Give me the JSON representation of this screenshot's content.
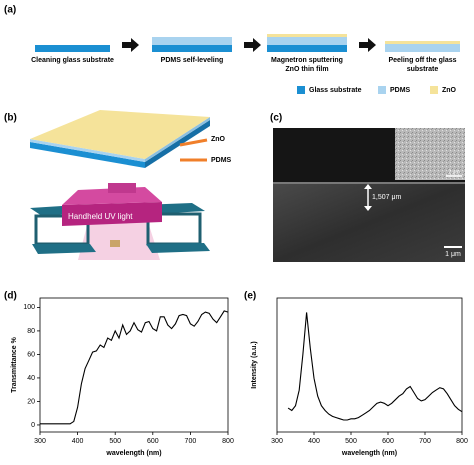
{
  "panel_labels": [
    "(a)",
    "(b)",
    "(c)",
    "(d)",
    "(e)"
  ],
  "process_steps": [
    {
      "lines": [
        "Cleaning glass substrate"
      ]
    },
    {
      "lines": [
        "PDMS self-leveling"
      ]
    },
    {
      "lines": [
        "Magnetron sputtering",
        "ZnO thin film"
      ]
    },
    {
      "lines": [
        "Peeling off the glass",
        "substrate"
      ]
    }
  ],
  "legend": [
    {
      "label": "Glass substrate",
      "color": "#1b8fd2"
    },
    {
      "label": "PDMS",
      "color": "#a9d3ef"
    },
    {
      "label": "ZnO",
      "color": "#f5e39a"
    }
  ],
  "illustration": {
    "labels": [
      "ZnO",
      "PDMS",
      "Handheld UV light"
    ]
  },
  "sem": {
    "scale_top": "2 μm",
    "thickness": "1,507 μm",
    "scale_bottom": "1 μm"
  },
  "chart_data": [
    {
      "type": "line",
      "xlabel": "wavelength (nm)",
      "ylabel": "Transmittance %",
      "color": "#000000",
      "x": [
        300,
        310,
        320,
        330,
        340,
        350,
        360,
        370,
        380,
        390,
        400,
        410,
        420,
        430,
        440,
        450,
        460,
        470,
        480,
        490,
        500,
        510,
        520,
        530,
        540,
        550,
        560,
        570,
        580,
        590,
        600,
        610,
        620,
        630,
        640,
        650,
        660,
        670,
        680,
        690,
        700,
        710,
        720,
        730,
        740,
        750,
        760,
        770,
        780,
        790,
        800
      ],
      "values": [
        1,
        1,
        1,
        1,
        1,
        1,
        1,
        1,
        1,
        3,
        15,
        35,
        48,
        55,
        62,
        63,
        68,
        66,
        74,
        72,
        80,
        74,
        85,
        77,
        80,
        87,
        81,
        79,
        87,
        88,
        82,
        80,
        92,
        92,
        85,
        82,
        86,
        93,
        94,
        93,
        86,
        84,
        88,
        94,
        96,
        95,
        90,
        87,
        92,
        97,
        96
      ],
      "xlim": [
        300,
        800
      ],
      "xticks": [
        300,
        400,
        500,
        600,
        700,
        800
      ],
      "ylim": [
        -6,
        108
      ],
      "yticks": [
        0,
        20,
        40,
        60,
        80,
        100
      ]
    },
    {
      "type": "line",
      "xlabel": "wavelength (nm)",
      "ylabel": "Intensity (a.u.)",
      "color": "#000000",
      "x": [
        330,
        340,
        350,
        360,
        370,
        380,
        390,
        400,
        410,
        420,
        430,
        440,
        450,
        460,
        470,
        480,
        490,
        500,
        510,
        520,
        530,
        540,
        550,
        560,
        570,
        580,
        590,
        600,
        610,
        620,
        630,
        640,
        650,
        660,
        670,
        680,
        690,
        700,
        710,
        720,
        730,
        740,
        750,
        760,
        770,
        780,
        790,
        800
      ],
      "values": [
        0.2,
        0.18,
        0.22,
        0.35,
        0.65,
        1.0,
        0.7,
        0.45,
        0.3,
        0.22,
        0.18,
        0.15,
        0.13,
        0.12,
        0.11,
        0.1,
        0.1,
        0.11,
        0.11,
        0.12,
        0.14,
        0.16,
        0.18,
        0.21,
        0.24,
        0.25,
        0.24,
        0.22,
        0.24,
        0.27,
        0.3,
        0.32,
        0.36,
        0.38,
        0.33,
        0.28,
        0.26,
        0.27,
        0.3,
        0.33,
        0.35,
        0.37,
        0.36,
        0.32,
        0.27,
        0.22,
        0.19,
        0.17
      ],
      "xlim": [
        300,
        800
      ],
      "xticks": [
        300,
        400,
        500,
        600,
        700,
        800
      ],
      "ylim": [
        0,
        1.12
      ],
      "yticks": []
    }
  ]
}
